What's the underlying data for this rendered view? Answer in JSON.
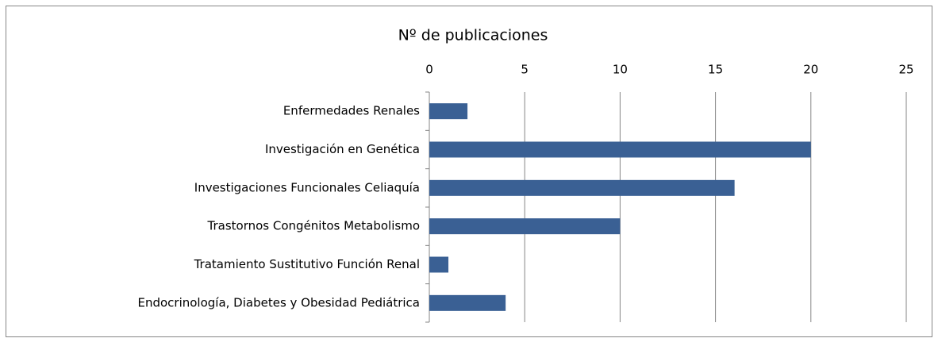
{
  "chart_data": {
    "type": "bar",
    "orientation": "horizontal",
    "title": "Nº de publicaciones",
    "categories": [
      "Enfermedades Renales",
      "Investigación en Genética",
      "Investigaciones Funcionales Celiaquía",
      "Trastornos Congénitos Metabolismo",
      "Tratamiento Sustitutivo Función Renal",
      "Endocrinología, Diabetes y Obesidad Pediátrica"
    ],
    "values": [
      2,
      20,
      16,
      10,
      1,
      4
    ],
    "color": "#3a6094",
    "xlim": [
      0,
      25
    ],
    "xticks": [
      0,
      5,
      10,
      15,
      20,
      25
    ],
    "grid": true,
    "x_axis_position": "top"
  }
}
